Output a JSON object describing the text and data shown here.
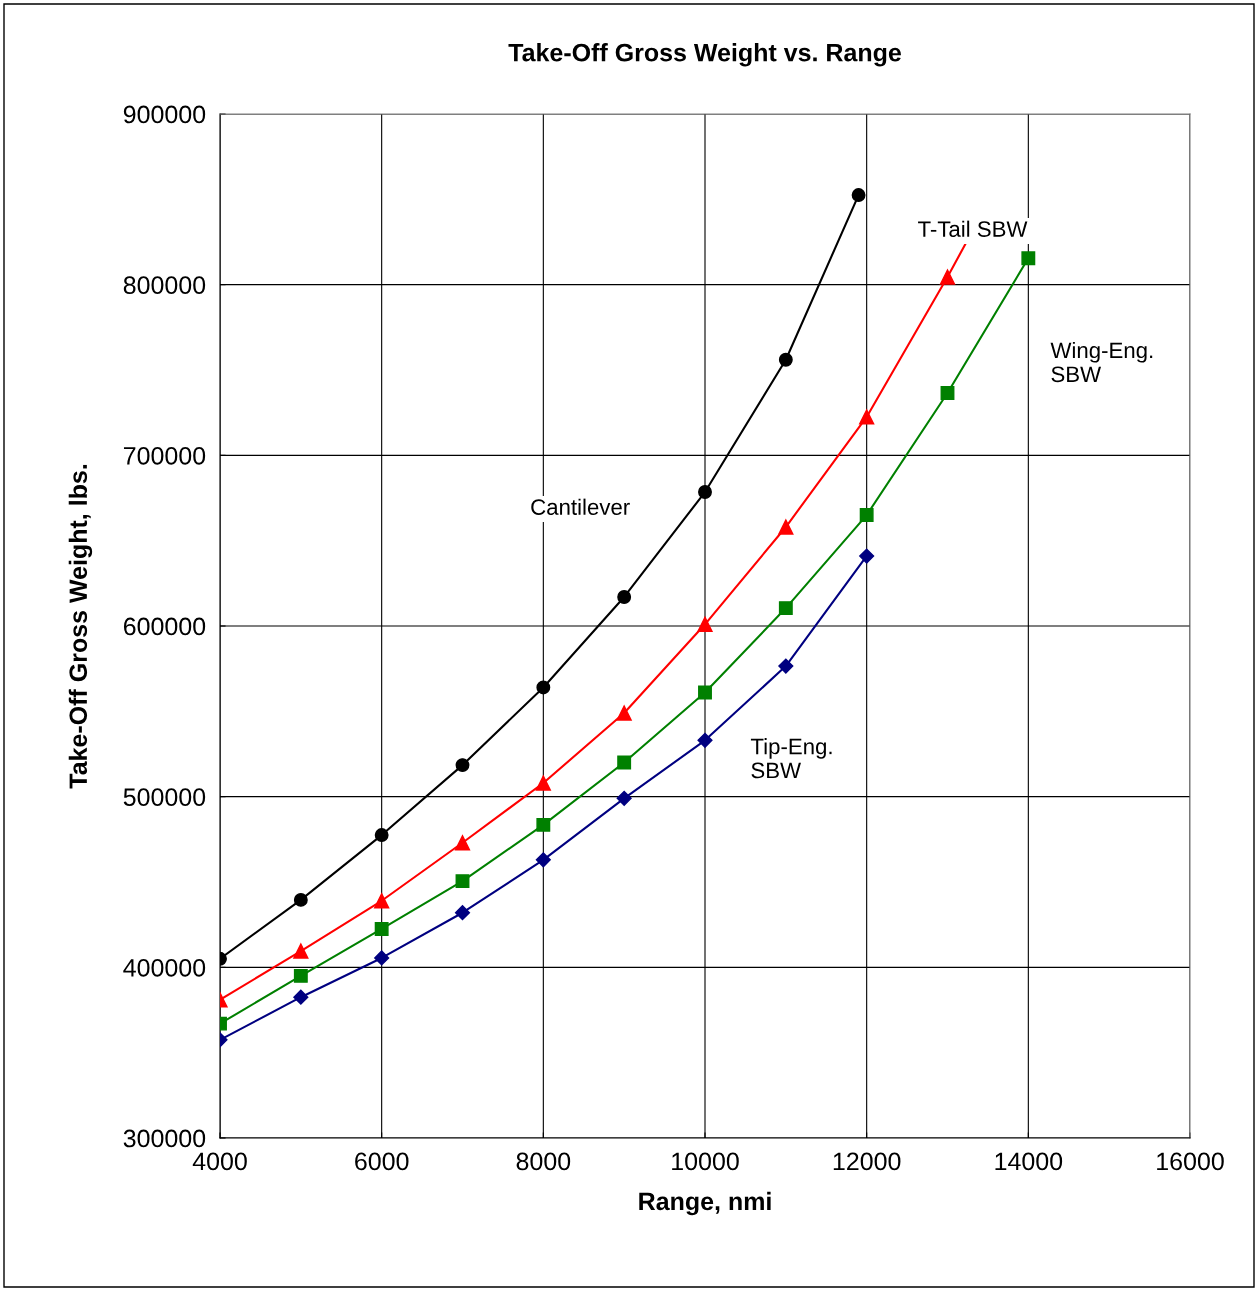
{
  "chart_data": {
    "type": "line",
    "title": "Take-Off Gross Weight vs. Range",
    "xlabel": "Range, nmi",
    "ylabel": "Take-Off Gross Weight, lbs.",
    "xlim": [
      4000,
      16000
    ],
    "xticks": [
      4000,
      6000,
      8000,
      10000,
      12000,
      14000,
      16000
    ],
    "ylim": [
      300000,
      900000
    ],
    "yticks": [
      300000,
      400000,
      500000,
      600000,
      700000,
      800000,
      900000
    ],
    "grid": true,
    "series": [
      {
        "name": "Cantilever",
        "color": "#000000",
        "marker": "circle",
        "x": [
          4000,
          5000,
          6000,
          7000,
          8000,
          9000,
          10000,
          11000,
          11900
        ],
        "values": [
          405000,
          439500,
          477500,
          518500,
          564000,
          617000,
          678500,
          756000,
          852500
        ]
      },
      {
        "name": "T-Tail SBW",
        "color": "#ff0000",
        "marker": "triangle",
        "x": [
          4000,
          5000,
          6000,
          7000,
          8000,
          9000,
          10000,
          11000,
          12000,
          13000
        ],
        "values": [
          381000,
          409500,
          439000,
          473000,
          508000,
          549000,
          601000,
          658000,
          722500,
          804500
        ]
      },
      {
        "name": "Wing-Eng.\nSBW",
        "color": "#008000",
        "marker": "square",
        "x": [
          4000,
          5000,
          6000,
          7000,
          8000,
          9000,
          10000,
          11000,
          12000,
          13000,
          14000
        ],
        "values": [
          367000,
          395000,
          422500,
          450500,
          483500,
          520000,
          561000,
          610500,
          665000,
          736500,
          815500
        ]
      },
      {
        "name": "Tip-Eng.\nSBW",
        "color": "#000080",
        "marker": "diamond",
        "x": [
          4000,
          5000,
          6000,
          7000,
          8000,
          9000,
          10000,
          11000,
          12000
        ],
        "values": [
          357500,
          382500,
          405500,
          432000,
          463000,
          499000,
          533000,
          576500,
          641000
        ]
      }
    ]
  }
}
